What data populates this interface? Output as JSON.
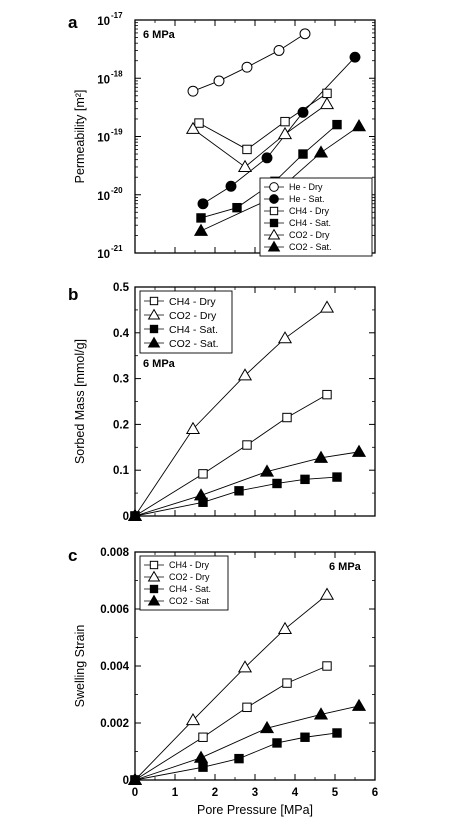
{
  "chart_data": [
    {
      "panel": "a",
      "type": "line",
      "annotation": "6 MPa",
      "ylabel": "Permeability [m²]",
      "xlabel": "",
      "xlim": [
        0,
        6
      ],
      "ylim_log10": [
        -21,
        -17
      ],
      "yscale": "log",
      "yticks": [
        {
          "exp": -17,
          "label": "10",
          "sup": "-17"
        },
        {
          "exp": -18,
          "label": "10",
          "sup": "-18"
        },
        {
          "exp": -19,
          "label": "10",
          "sup": "-19"
        },
        {
          "exp": -20,
          "label": "10",
          "sup": "-20"
        },
        {
          "exp": -21,
          "label": "10",
          "sup": "-21"
        }
      ],
      "legend_position": "bottom-right",
      "series": [
        {
          "name": "He - Dry",
          "marker": "circle",
          "filled": false,
          "x": [
            1.45,
            2.1,
            2.8,
            3.6,
            4.25
          ],
          "y": [
            6e-19,
            9e-19,
            1.55e-18,
            3e-18,
            5.8e-18
          ]
        },
        {
          "name": "He - Sat.",
          "marker": "circle",
          "filled": true,
          "x": [
            1.7,
            2.4,
            3.3,
            4.2,
            5.5
          ],
          "y": [
            7e-21,
            1.4e-20,
            4.3e-20,
            2.6e-19,
            2.3e-18
          ]
        },
        {
          "name": "CH4 - Dry",
          "marker": "square",
          "filled": false,
          "x": [
            1.6,
            2.8,
            3.75,
            4.8
          ],
          "y": [
            1.7e-19,
            6e-20,
            1.8e-19,
            5.5e-19
          ]
        },
        {
          "name": "CH4 - Sat.",
          "marker": "square",
          "filled": true,
          "x": [
            1.65,
            2.55,
            3.5,
            4.2,
            5.05
          ],
          "y": [
            4e-21,
            6e-21,
            1.7e-20,
            5e-20,
            1.6e-19
          ]
        },
        {
          "name": "CO2 - Dry",
          "marker": "triangle",
          "filled": false,
          "x": [
            1.45,
            2.75,
            3.75,
            4.8
          ],
          "y": [
            1.35e-19,
            3e-20,
            1.1e-19,
            3.6e-19
          ]
        },
        {
          "name": "CO2 - Sat.",
          "marker": "triangle",
          "filled": true,
          "x": [
            1.65,
            3.3,
            4.65,
            5.6
          ],
          "y": [
            2.4e-21,
            8e-21,
            5.3e-20,
            1.5e-19
          ]
        }
      ]
    },
    {
      "panel": "b",
      "type": "line",
      "annotation": "6 MPa",
      "ylabel": "Sorbed Mass [mmol/g]",
      "xlabel": "",
      "xlim": [
        0,
        6
      ],
      "ylim": [
        0,
        0.5
      ],
      "yticks": [
        "0",
        "0.1",
        "0.2",
        "0.3",
        "0.4",
        "0.5"
      ],
      "ytick_values": [
        0,
        0.1,
        0.2,
        0.3,
        0.4,
        0.5
      ],
      "legend_position": "top-left",
      "series": [
        {
          "name": "CH4 - Dry",
          "marker": "square",
          "filled": false,
          "x": [
            0,
            1.7,
            2.8,
            3.8,
            4.8
          ],
          "y": [
            0,
            0.092,
            0.155,
            0.215,
            0.265
          ]
        },
        {
          "name": "CO2 - Dry",
          "marker": "triangle",
          "filled": false,
          "x": [
            0,
            1.45,
            2.75,
            3.75,
            4.8
          ],
          "y": [
            0,
            0.19,
            0.307,
            0.388,
            0.455
          ]
        },
        {
          "name": "CH4 - Sat.",
          "marker": "square",
          "filled": true,
          "x": [
            0,
            1.7,
            2.6,
            3.55,
            4.25,
            5.05
          ],
          "y": [
            0,
            0.03,
            0.055,
            0.071,
            0.08,
            0.085
          ]
        },
        {
          "name": "CO2 - Sat.",
          "marker": "triangle",
          "filled": true,
          "x": [
            0,
            1.65,
            3.3,
            4.65,
            5.6
          ],
          "y": [
            0,
            0.045,
            0.097,
            0.127,
            0.14
          ]
        }
      ]
    },
    {
      "panel": "c",
      "type": "line",
      "annotation": "6 MPa",
      "ylabel": "Swelling Strain",
      "xlabel": "Pore Pressure [MPa]",
      "xlim": [
        0,
        6
      ],
      "xticks": [
        "0",
        "1",
        "2",
        "3",
        "4",
        "5",
        "6"
      ],
      "xtick_values": [
        0,
        1,
        2,
        3,
        4,
        5,
        6
      ],
      "ylim": [
        0,
        0.008
      ],
      "yticks": [
        "0",
        "0.002",
        "0.004",
        "0.006",
        "0.008"
      ],
      "ytick_values": [
        0,
        0.002,
        0.004,
        0.006,
        0.008
      ],
      "legend_position": "top-left",
      "series": [
        {
          "name": "CH4 - Dry",
          "marker": "square",
          "filled": false,
          "x": [
            0,
            1.7,
            2.8,
            3.8,
            4.8
          ],
          "y": [
            0,
            0.0015,
            0.00255,
            0.0034,
            0.004
          ]
        },
        {
          "name": "CO2 - Dry",
          "marker": "triangle",
          "filled": false,
          "x": [
            0,
            1.45,
            2.75,
            3.75,
            4.8
          ],
          "y": [
            0,
            0.0021,
            0.00395,
            0.0053,
            0.0065
          ]
        },
        {
          "name": "CH4 - Sat.",
          "marker": "square",
          "filled": true,
          "x": [
            0,
            1.7,
            2.6,
            3.55,
            4.25,
            5.05
          ],
          "y": [
            0,
            0.00045,
            0.00075,
            0.0013,
            0.0015,
            0.00165
          ]
        },
        {
          "name": "CO2 - Sat",
          "marker": "triangle",
          "filled": true,
          "x": [
            0,
            1.65,
            3.3,
            4.65,
            5.6
          ],
          "y": [
            0,
            0.00078,
            0.00182,
            0.0023,
            0.0026
          ]
        }
      ]
    }
  ]
}
